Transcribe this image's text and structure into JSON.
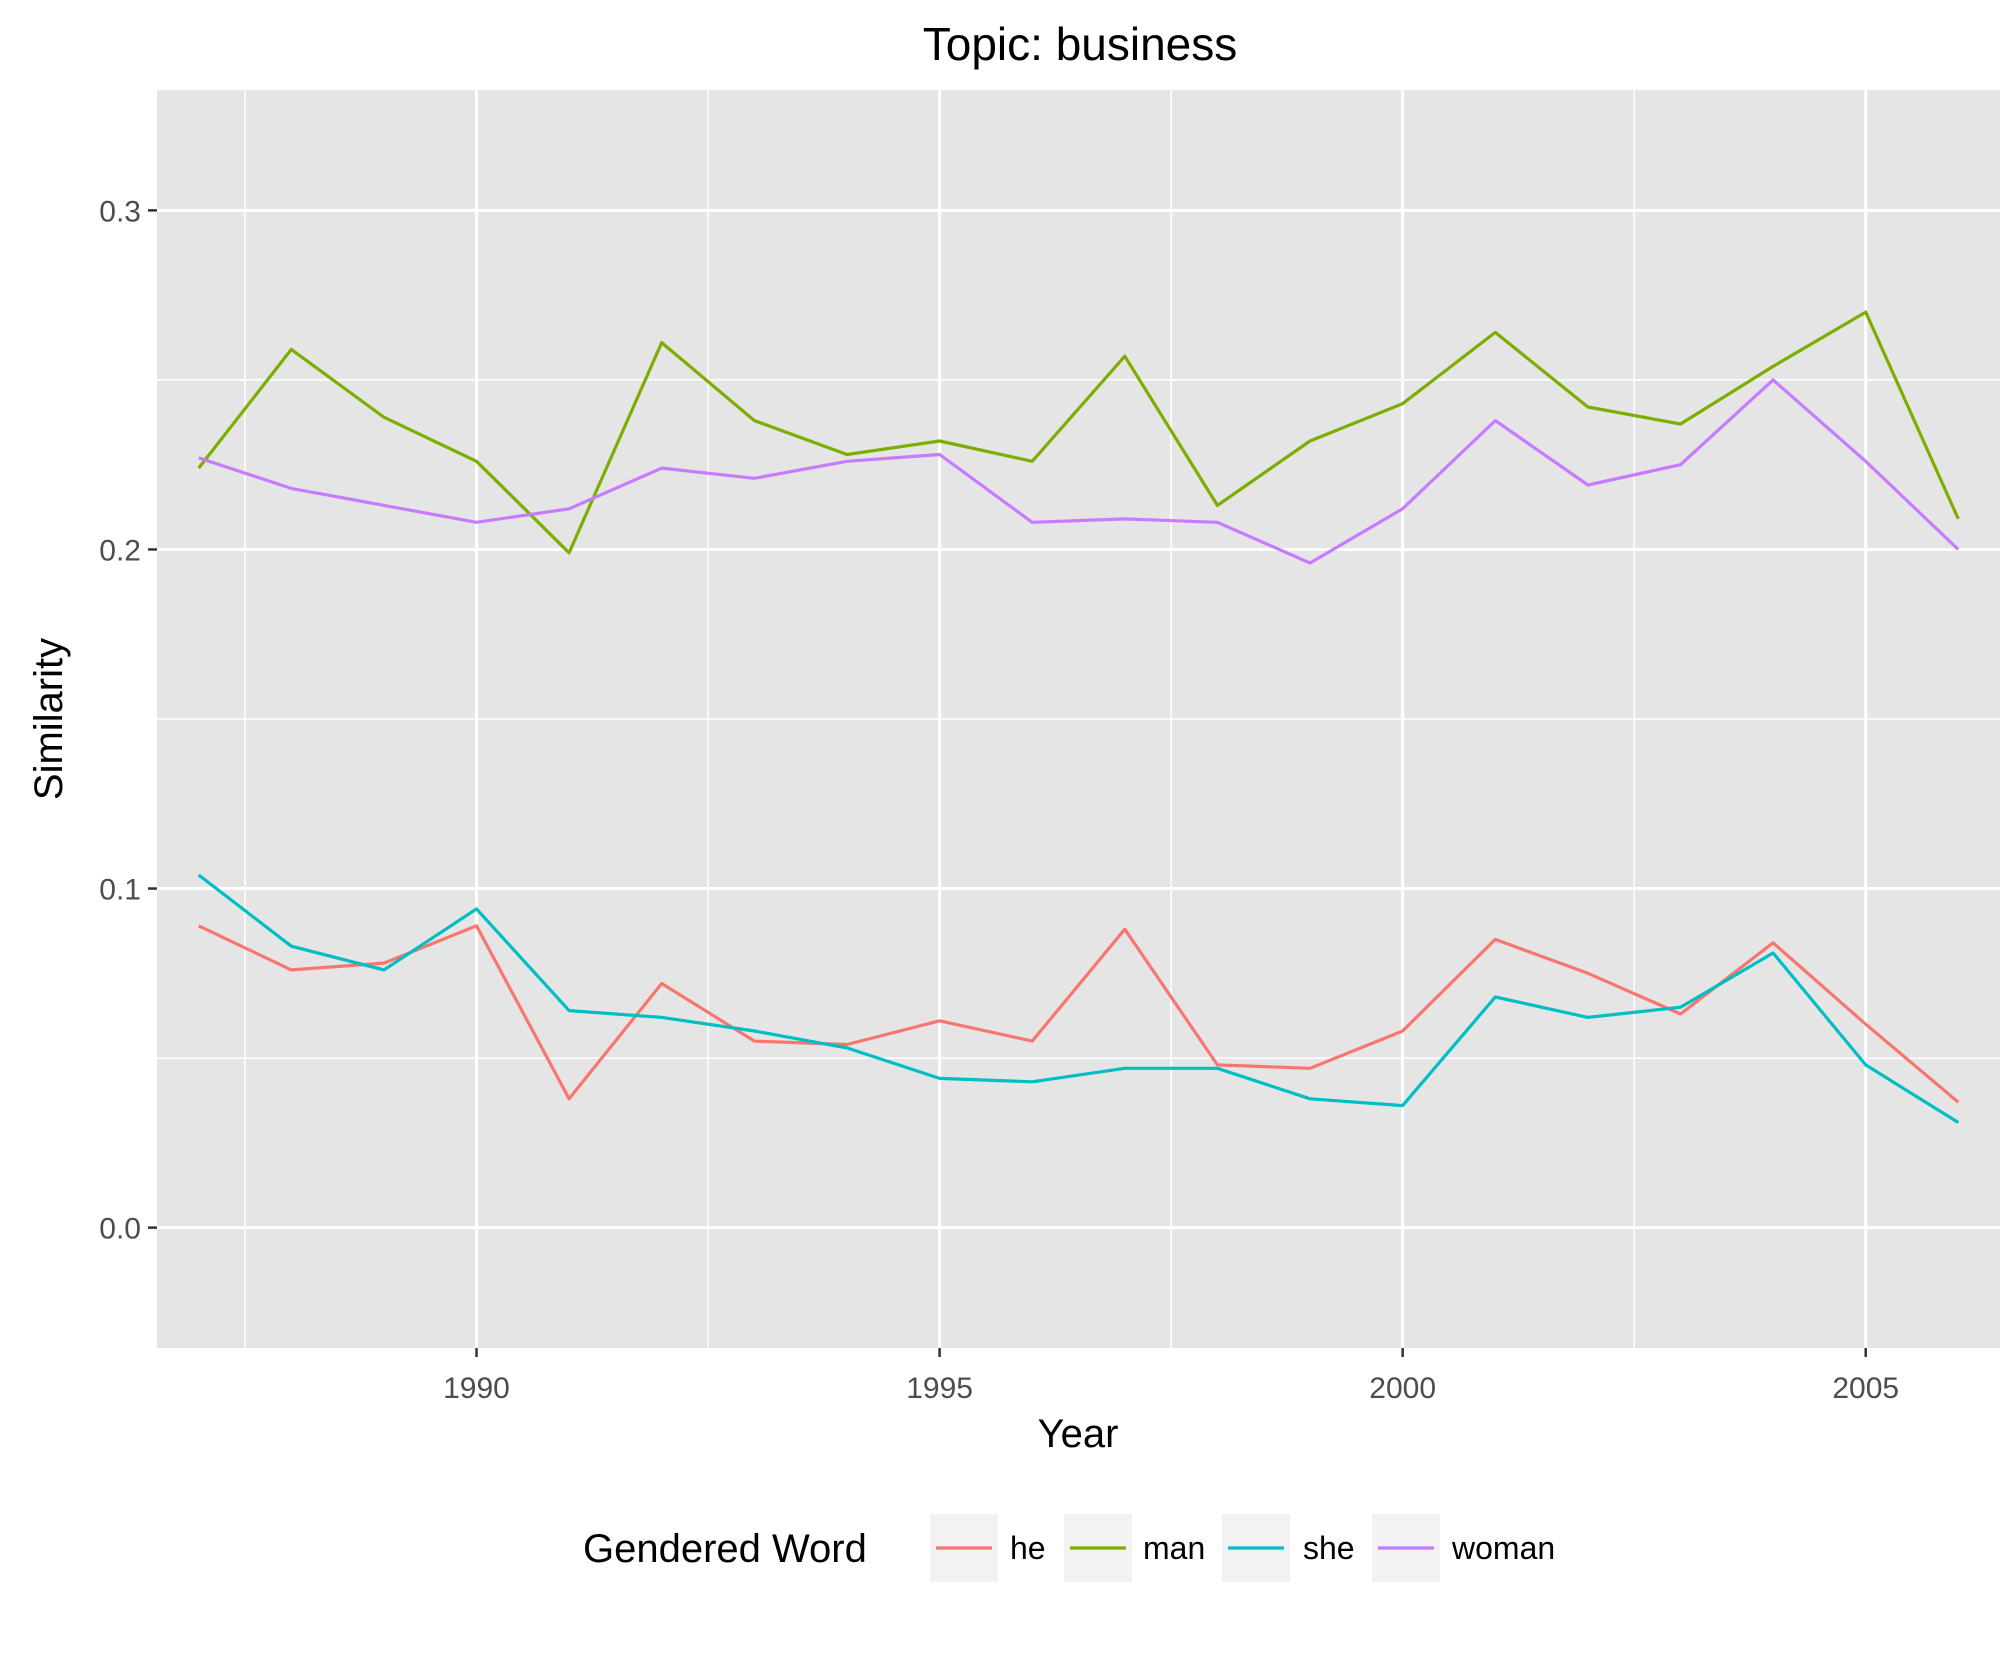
{
  "chart_data": {
    "type": "line",
    "title": "Topic: business",
    "xlabel": "Year",
    "ylabel": "Similarity",
    "xlim": [
      1986.55,
      2006.45
    ],
    "ylim": [
      -0.0355,
      0.3355
    ],
    "x_ticks": [
      1990,
      1995,
      2000,
      2005
    ],
    "x_tick_labels": [
      "1990",
      "1995",
      "2000",
      "2005"
    ],
    "y_ticks": [
      0.0,
      0.1,
      0.2,
      0.3
    ],
    "y_tick_labels": [
      "0.0",
      "0.1",
      "0.2",
      "0.3"
    ],
    "grid": true,
    "background": "#e5e5e5",
    "legend": {
      "title": "Gendered Word",
      "position": "bottom"
    },
    "x": [
      1987,
      1988,
      1989,
      1990,
      1991,
      1992,
      1993,
      1994,
      1995,
      1996,
      1997,
      1998,
      1999,
      2000,
      2001,
      2002,
      2003,
      2004,
      2005,
      2006
    ],
    "series": [
      {
        "name": "he",
        "color": "#F8766D",
        "values": [
          0.089,
          0.076,
          0.078,
          0.089,
          0.038,
          0.072,
          0.055,
          0.054,
          0.061,
          0.055,
          0.088,
          0.048,
          0.047,
          0.058,
          0.085,
          0.075,
          0.063,
          0.084,
          0.06,
          0.037
        ]
      },
      {
        "name": "man",
        "color": "#7CAE00",
        "values": [
          0.224,
          0.259,
          0.239,
          0.226,
          0.199,
          0.261,
          0.238,
          0.228,
          0.232,
          0.226,
          0.257,
          0.213,
          0.232,
          0.243,
          0.264,
          0.242,
          0.237,
          0.254,
          0.27,
          0.209
        ]
      },
      {
        "name": "she",
        "color": "#00BFC4",
        "values": [
          0.104,
          0.083,
          0.076,
          0.094,
          0.064,
          0.062,
          0.058,
          0.053,
          0.044,
          0.043,
          0.047,
          0.047,
          0.038,
          0.036,
          0.068,
          0.062,
          0.065,
          0.081,
          0.048,
          0.031
        ]
      },
      {
        "name": "woman",
        "color": "#C77CFF",
        "values": [
          0.227,
          0.218,
          0.213,
          0.208,
          0.212,
          0.224,
          0.221,
          0.226,
          0.228,
          0.208,
          0.209,
          0.208,
          0.196,
          0.212,
          0.238,
          0.219,
          0.225,
          0.25,
          0.226,
          0.2
        ]
      }
    ]
  }
}
